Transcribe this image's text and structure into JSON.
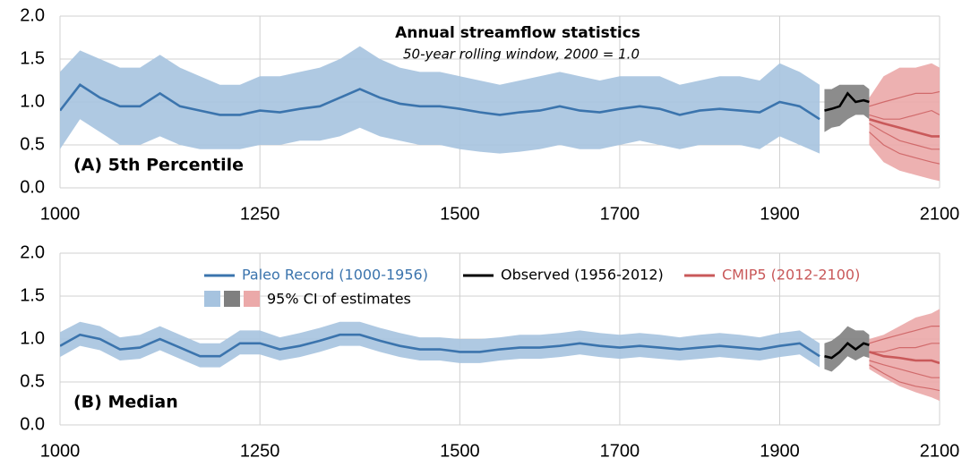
{
  "chart_data": [
    {
      "type": "line",
      "title": "Annual streamflow statistics",
      "subtitle": "50-year rolling window, 2000 = 1.0",
      "panel_label": "(A) 5th Percentile",
      "xlim": [
        1000,
        2100
      ],
      "xticks": [
        1000,
        1250,
        1500,
        1700,
        1900,
        2100
      ],
      "ylim": [
        0,
        2
      ],
      "yticks": [
        {
          "value": 0,
          "label": "0.0"
        },
        {
          "value": 0.5,
          "label": "0.5"
        },
        {
          "value": 1,
          "label": "1.0"
        },
        {
          "value": 1.5,
          "label": "1.5"
        },
        {
          "value": 2,
          "label": "2.0"
        }
      ],
      "grid": true,
      "legend": false,
      "series": [
        {
          "name": "Paleo Record (1000-1956)",
          "color": "#3b74ad",
          "band_color": "#a6c3df",
          "x": [
            1000,
            1025,
            1050,
            1075,
            1100,
            1125,
            1150,
            1175,
            1200,
            1225,
            1250,
            1275,
            1300,
            1325,
            1350,
            1375,
            1400,
            1425,
            1450,
            1475,
            1500,
            1525,
            1550,
            1575,
            1600,
            1625,
            1650,
            1675,
            1700,
            1725,
            1750,
            1775,
            1800,
            1825,
            1850,
            1875,
            1900,
            1925,
            1950
          ],
          "values": [
            0.9,
            1.2,
            1.05,
            0.95,
            0.95,
            1.1,
            0.95,
            0.9,
            0.85,
            0.85,
            0.9,
            0.88,
            0.92,
            0.95,
            1.05,
            1.15,
            1.05,
            0.98,
            0.95,
            0.95,
            0.92,
            0.88,
            0.85,
            0.88,
            0.9,
            0.95,
            0.9,
            0.88,
            0.92,
            0.95,
            0.92,
            0.85,
            0.9,
            0.92,
            0.9,
            0.88,
            1.0,
            0.95,
            0.8
          ],
          "upper": [
            1.35,
            1.6,
            1.5,
            1.4,
            1.4,
            1.55,
            1.4,
            1.3,
            1.2,
            1.2,
            1.3,
            1.3,
            1.35,
            1.4,
            1.5,
            1.65,
            1.5,
            1.4,
            1.35,
            1.35,
            1.3,
            1.25,
            1.2,
            1.25,
            1.3,
            1.35,
            1.3,
            1.25,
            1.3,
            1.3,
            1.3,
            1.2,
            1.25,
            1.3,
            1.3,
            1.25,
            1.45,
            1.35,
            1.2
          ],
          "lower": [
            0.45,
            0.8,
            0.65,
            0.5,
            0.5,
            0.6,
            0.5,
            0.45,
            0.45,
            0.45,
            0.5,
            0.5,
            0.55,
            0.55,
            0.6,
            0.7,
            0.6,
            0.55,
            0.5,
            0.5,
            0.45,
            0.42,
            0.4,
            0.42,
            0.45,
            0.5,
            0.45,
            0.45,
            0.5,
            0.55,
            0.5,
            0.45,
            0.5,
            0.5,
            0.5,
            0.45,
            0.6,
            0.5,
            0.4
          ]
        },
        {
          "name": "Observed (1956-2012)",
          "color": "#000000",
          "band_color": "#7f7f7f",
          "x": [
            1956,
            1965,
            1975,
            1985,
            1995,
            2005,
            2012
          ],
          "values": [
            0.9,
            0.92,
            0.95,
            1.1,
            1.0,
            1.02,
            1.0
          ],
          "upper": [
            1.15,
            1.15,
            1.2,
            1.2,
            1.2,
            1.2,
            1.15
          ],
          "lower": [
            0.65,
            0.7,
            0.72,
            0.8,
            0.85,
            0.85,
            0.8
          ]
        },
        {
          "name": "CMIP5 (2012-2100)",
          "color": "#c9595a",
          "band_color": "#eba9a9",
          "x": [
            2012,
            2030,
            2050,
            2070,
            2090,
            2100
          ],
          "values": [
            0.8,
            0.75,
            0.7,
            0.65,
            0.6,
            0.6
          ],
          "upper": [
            1.05,
            1.3,
            1.4,
            1.4,
            1.45,
            1.4
          ],
          "lower": [
            0.5,
            0.3,
            0.2,
            0.15,
            0.1,
            0.08
          ],
          "members": [
            [
              0.95,
              1.0,
              1.05,
              1.1,
              1.1,
              1.12
            ],
            [
              0.85,
              0.8,
              0.8,
              0.85,
              0.9,
              0.85
            ],
            [
              0.75,
              0.65,
              0.55,
              0.5,
              0.45,
              0.45
            ],
            [
              0.65,
              0.5,
              0.4,
              0.35,
              0.3,
              0.28
            ]
          ]
        }
      ]
    },
    {
      "type": "line",
      "panel_label": "(B) Median",
      "xlim": [
        1000,
        2100
      ],
      "xticks": [
        1000,
        1250,
        1500,
        1700,
        1900,
        2100
      ],
      "ylim": [
        0,
        2
      ],
      "yticks": [
        {
          "value": 0,
          "label": "0.0"
        },
        {
          "value": 0.5,
          "label": "0.5"
        },
        {
          "value": 1,
          "label": "1.0"
        },
        {
          "value": 1.5,
          "label": "1.5"
        },
        {
          "value": 2,
          "label": "2.0"
        }
      ],
      "grid": true,
      "legend": true,
      "band_label": "95% CI of estimates",
      "series": [
        {
          "name": "Paleo Record (1000-1956)",
          "color": "#3b74ad",
          "band_color": "#a6c3df",
          "x": [
            1000,
            1025,
            1050,
            1075,
            1100,
            1125,
            1150,
            1175,
            1200,
            1225,
            1250,
            1275,
            1300,
            1325,
            1350,
            1375,
            1400,
            1425,
            1450,
            1475,
            1500,
            1525,
            1550,
            1575,
            1600,
            1625,
            1650,
            1675,
            1700,
            1725,
            1750,
            1775,
            1800,
            1825,
            1850,
            1875,
            1900,
            1925,
            1950
          ],
          "values": [
            0.92,
            1.05,
            1.0,
            0.88,
            0.9,
            1.0,
            0.9,
            0.8,
            0.8,
            0.95,
            0.95,
            0.88,
            0.92,
            0.98,
            1.05,
            1.05,
            0.98,
            0.92,
            0.88,
            0.88,
            0.85,
            0.85,
            0.88,
            0.9,
            0.9,
            0.92,
            0.95,
            0.92,
            0.9,
            0.92,
            0.9,
            0.88,
            0.9,
            0.92,
            0.9,
            0.88,
            0.92,
            0.95,
            0.8
          ],
          "upper": [
            1.08,
            1.2,
            1.15,
            1.02,
            1.05,
            1.15,
            1.05,
            0.95,
            0.95,
            1.1,
            1.1,
            1.02,
            1.07,
            1.13,
            1.2,
            1.2,
            1.13,
            1.07,
            1.02,
            1.02,
            1.0,
            1.0,
            1.02,
            1.05,
            1.05,
            1.07,
            1.1,
            1.07,
            1.05,
            1.07,
            1.05,
            1.02,
            1.05,
            1.07,
            1.05,
            1.02,
            1.07,
            1.1,
            0.95
          ],
          "lower": [
            0.79,
            0.92,
            0.87,
            0.75,
            0.77,
            0.87,
            0.77,
            0.67,
            0.67,
            0.82,
            0.82,
            0.75,
            0.79,
            0.85,
            0.92,
            0.92,
            0.85,
            0.79,
            0.75,
            0.75,
            0.72,
            0.72,
            0.75,
            0.77,
            0.77,
            0.79,
            0.82,
            0.79,
            0.77,
            0.79,
            0.77,
            0.75,
            0.77,
            0.79,
            0.77,
            0.75,
            0.79,
            0.82,
            0.67
          ]
        },
        {
          "name": "Observed (1956-2012)",
          "color": "#000000",
          "band_color": "#7f7f7f",
          "x": [
            1956,
            1965,
            1975,
            1985,
            1995,
            2005,
            2012
          ],
          "values": [
            0.8,
            0.78,
            0.85,
            0.95,
            0.88,
            0.95,
            0.93
          ],
          "upper": [
            0.95,
            0.98,
            1.05,
            1.15,
            1.1,
            1.1,
            1.05
          ],
          "lower": [
            0.65,
            0.62,
            0.7,
            0.8,
            0.75,
            0.8,
            0.78
          ]
        },
        {
          "name": "CMIP5 (2012-2100)",
          "color": "#c9595a",
          "band_color": "#eba9a9",
          "x": [
            2012,
            2030,
            2050,
            2070,
            2090,
            2100
          ],
          "values": [
            0.85,
            0.8,
            0.78,
            0.75,
            0.75,
            0.72
          ],
          "upper": [
            1.0,
            1.05,
            1.15,
            1.25,
            1.3,
            1.35
          ],
          "lower": [
            0.65,
            0.55,
            0.45,
            0.38,
            0.32,
            0.28
          ],
          "members": [
            [
              0.95,
              1.0,
              1.05,
              1.1,
              1.15,
              1.15
            ],
            [
              0.85,
              0.85,
              0.9,
              0.9,
              0.95,
              0.95
            ],
            [
              0.75,
              0.7,
              0.65,
              0.6,
              0.55,
              0.55
            ],
            [
              0.7,
              0.6,
              0.5,
              0.45,
              0.42,
              0.4
            ]
          ]
        }
      ]
    }
  ]
}
